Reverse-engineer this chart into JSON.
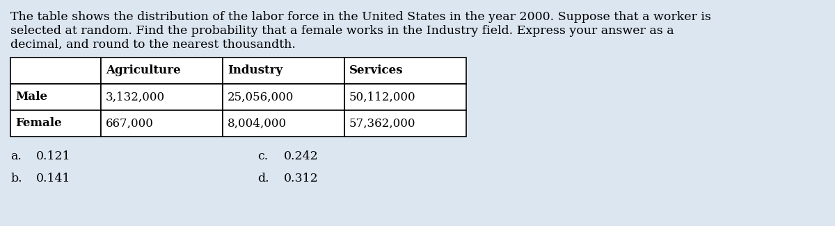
{
  "paragraph_lines": [
    "The table shows the distribution of the labor force in the United States in the year 2000. Suppose that a worker is",
    "selected at random. Find the probability that a female works in the Industry field. Express your answer as a",
    "decimal, and round to the nearest thousandth."
  ],
  "table_headers": [
    "",
    "Agriculture",
    "Industry",
    "Services"
  ],
  "table_rows": [
    [
      "Male",
      "3,132,000",
      "25,056,000",
      "50,112,000"
    ],
    [
      "Female",
      "667,000",
      "8,004,000",
      "57,362,000"
    ]
  ],
  "choices_left": [
    [
      "a.",
      "0.121"
    ],
    [
      "b.",
      "0.141"
    ]
  ],
  "choices_right": [
    [
      "c.",
      "0.242"
    ],
    [
      "d.",
      "0.312"
    ]
  ],
  "bg_color": "#dce6f1",
  "text_color": "#000000",
  "font_size_para": 12.5,
  "font_size_table": 12.0,
  "font_size_choices": 12.5
}
